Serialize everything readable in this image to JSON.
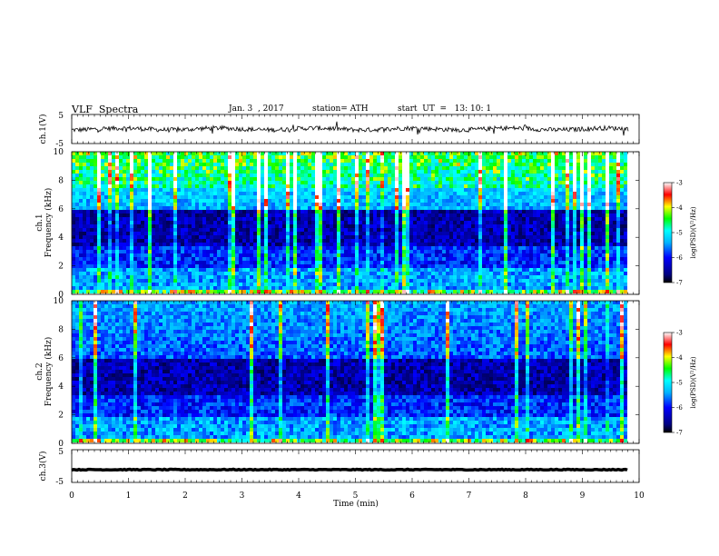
{
  "header": {
    "title": "VLF  Spectra",
    "date": "Jan. 3  , 2017",
    "station": "station= ATH",
    "start": "start  UT  =   13: 10: 1"
  },
  "chart_data": [
    {
      "type": "line",
      "panel": "ch1-waveform",
      "ylabel": "ch.1(V)",
      "ylim": [
        -5,
        5
      ],
      "yticks": [
        "5",
        "-5"
      ],
      "xlim": [
        0,
        10
      ],
      "color": "#000000"
    },
    {
      "type": "heatmap",
      "panel": "ch1-spectrogram",
      "ylabel": "ch.1\nFrequency (kHz)",
      "ylim": [
        0,
        10
      ],
      "yticks": [
        "0",
        "2",
        "4",
        "6",
        "8",
        "10"
      ],
      "xlim": [
        0,
        10
      ],
      "colorbar": {
        "label": "log(PSD)(V²/Hz)",
        "ticks": [
          "-3",
          "-4",
          "-5",
          "-6",
          "-7"
        ],
        "range": [
          -7,
          -3
        ]
      }
    },
    {
      "type": "heatmap",
      "panel": "ch2-spectrogram",
      "ylabel": "ch.2\nFrequency (kHz)",
      "ylim": [
        0,
        10
      ],
      "yticks": [
        "0",
        "2",
        "4",
        "6",
        "8",
        "10"
      ],
      "xlim": [
        0,
        10
      ],
      "colorbar": {
        "label": "log(PSD)(V²/Hz)",
        "ticks": [
          "-3",
          "-4",
          "-5",
          "-6",
          "-7"
        ],
        "range": [
          -7,
          -3
        ]
      }
    },
    {
      "type": "line",
      "panel": "ch3-waveform",
      "ylabel": "ch.3(V)",
      "ylim": [
        -5,
        5
      ],
      "yticks": [
        "5",
        "-5"
      ],
      "xlim": [
        0,
        10
      ],
      "xticks": [
        "0",
        "1",
        "2",
        "3",
        "4",
        "5",
        "6",
        "7",
        "8",
        "9",
        "10"
      ],
      "xlabel": "Time  (min)",
      "color": "#000000"
    }
  ]
}
